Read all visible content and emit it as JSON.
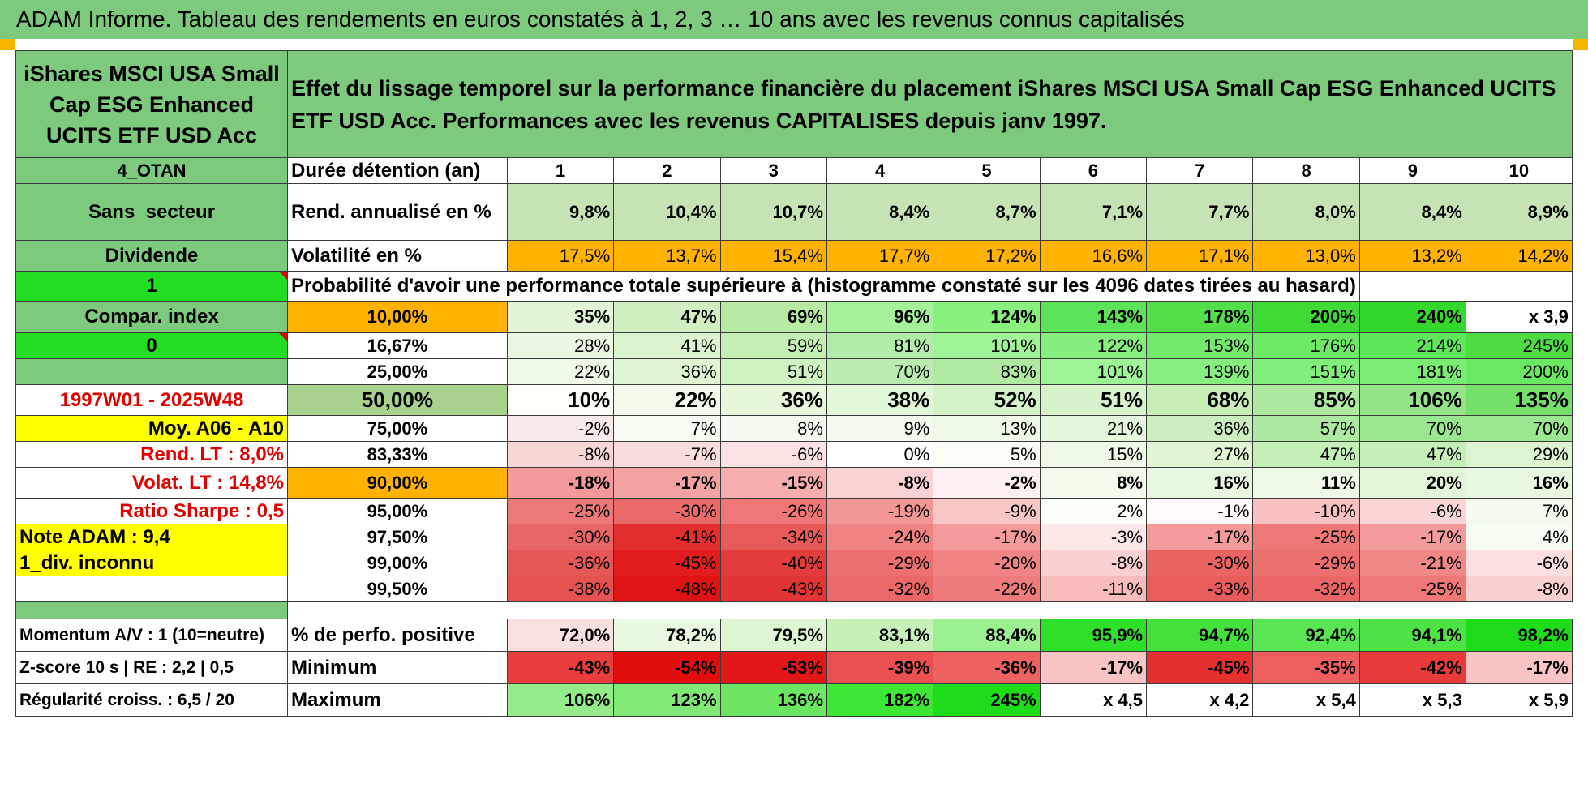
{
  "title": "ADAM Informe. Tableau des rendements en euros constatés à 1, 2, 3 … 10 ans avec les revenus connus capitalisés",
  "fund_name": "iShares MSCI USA Small Cap ESG Enhanced UCITS ETF USD Acc",
  "description": "Effet du lissage temporel sur la performance financière du placement iShares MSCI USA Small Cap ESG Enhanced UCITS ETF USD Acc. Performances avec les revenus CAPITALISES depuis janv 1997.",
  "left": {
    "zone": "4_OTAN",
    "sector": "Sans_secteur",
    "dividend": "Dividende",
    "flag1": "1",
    "compar": "Compar. index",
    "flag0": "0",
    "period": "1997W01 - 2025W48",
    "moy": "Moy. A06 - A10",
    "rend_lt": "Rend. LT :   8,0%",
    "volat_lt": "Volat. LT :   14,8%",
    "sharpe": "Ratio Sharpe :   0,5",
    "note": "Note ADAM : 9,4",
    "div_unknown": "1_div. inconnu",
    "momentum": "Momentum A/V : 1 (10=neutre)",
    "zscore": "Z-score 10 s | RE : 2,2 | 0,5",
    "regularite": "Régularité croiss. : 6,5 / 20"
  },
  "headers": {
    "duree": "Durée détention (an)",
    "rend": "Rend. annualisé en %",
    "vol": "Volatilité en %",
    "prob": "Probabilité d'avoir une performance totale supérieure à (histogramme constaté sur les 4096 dates tirées au hasard)",
    "pos": "% de perfo. positive",
    "min": "Minimum",
    "max": "Maximum"
  },
  "years": [
    "1",
    "2",
    "3",
    "4",
    "5",
    "6",
    "7",
    "8",
    "9",
    "10"
  ],
  "rend_vals": [
    "9,8%",
    "10,4%",
    "10,7%",
    "8,4%",
    "8,7%",
    "7,1%",
    "7,7%",
    "8,0%",
    "8,4%",
    "8,9%"
  ],
  "vol_vals": [
    "17,5%",
    "13,7%",
    "15,4%",
    "17,7%",
    "17,2%",
    "16,6%",
    "17,1%",
    "13,0%",
    "13,2%",
    "14,2%"
  ],
  "quantiles": [
    {
      "label": "10,00%",
      "vals": [
        "35%",
        "47%",
        "69%",
        "96%",
        "124%",
        "143%",
        "178%",
        "200%",
        "240%",
        "x 3,9"
      ]
    },
    {
      "label": "16,67%",
      "vals": [
        "28%",
        "41%",
        "59%",
        "81%",
        "101%",
        "122%",
        "153%",
        "176%",
        "214%",
        "245%"
      ]
    },
    {
      "label": "25,00%",
      "vals": [
        "22%",
        "36%",
        "51%",
        "70%",
        "83%",
        "101%",
        "139%",
        "151%",
        "181%",
        "200%"
      ]
    },
    {
      "label": "50,00%",
      "vals": [
        "10%",
        "22%",
        "36%",
        "38%",
        "52%",
        "51%",
        "68%",
        "85%",
        "106%",
        "135%"
      ]
    },
    {
      "label": "75,00%",
      "vals": [
        "-2%",
        "7%",
        "8%",
        "9%",
        "13%",
        "21%",
        "36%",
        "57%",
        "70%",
        "70%"
      ]
    },
    {
      "label": "83,33%",
      "vals": [
        "-8%",
        "-7%",
        "-6%",
        "0%",
        "5%",
        "15%",
        "27%",
        "47%",
        "47%",
        "29%"
      ]
    },
    {
      "label": "90,00%",
      "vals": [
        "-18%",
        "-17%",
        "-15%",
        "-8%",
        "-2%",
        "8%",
        "16%",
        "11%",
        "20%",
        "16%"
      ]
    },
    {
      "label": "95,00%",
      "vals": [
        "-25%",
        "-30%",
        "-26%",
        "-19%",
        "-9%",
        "2%",
        "-1%",
        "-10%",
        "-6%",
        "7%"
      ]
    },
    {
      "label": "97,50%",
      "vals": [
        "-30%",
        "-41%",
        "-34%",
        "-24%",
        "-17%",
        "-3%",
        "-17%",
        "-25%",
        "-17%",
        "4%"
      ]
    },
    {
      "label": "99,00%",
      "vals": [
        "-36%",
        "-45%",
        "-40%",
        "-29%",
        "-20%",
        "-8%",
        "-30%",
        "-29%",
        "-21%",
        "-6%"
      ]
    },
    {
      "label": "99,50%",
      "vals": [
        "-38%",
        "-48%",
        "-43%",
        "-32%",
        "-22%",
        "-11%",
        "-33%",
        "-32%",
        "-25%",
        "-8%"
      ]
    }
  ],
  "pos_vals": [
    "72,0%",
    "78,2%",
    "79,5%",
    "83,1%",
    "88,4%",
    "95,9%",
    "94,7%",
    "92,4%",
    "94,1%",
    "98,2%"
  ],
  "min_vals": [
    "-43%",
    "-54%",
    "-53%",
    "-39%",
    "-36%",
    "-17%",
    "-45%",
    "-35%",
    "-42%",
    "-17%"
  ],
  "max_vals": [
    "106%",
    "123%",
    "136%",
    "182%",
    "245%",
    "x 4,5",
    "x 4,2",
    "x 5,4",
    "x 5,3",
    "x 5,9"
  ],
  "colors": {
    "header_green": "#7dc97d",
    "bright_green": "#22dd22",
    "orange": "#ffb300",
    "yellow": "#ffff00",
    "red_text": "#e00000"
  }
}
